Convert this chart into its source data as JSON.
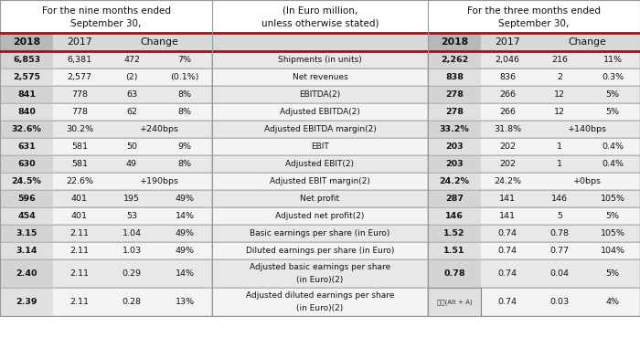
{
  "title_left1": "For the nine months ended",
  "title_left2": "September 30,",
  "title_center1": "(In Euro million,",
  "title_center2": "unless otherwise stated)",
  "title_right1": "For the three months ended",
  "title_right2": "September 30,",
  "rows": [
    {
      "label": "Shipments (in units)",
      "left": [
        "6,853",
        "6,381",
        "472",
        "7%"
      ],
      "right": [
        "2,262",
        "2,046",
        "216",
        "11%"
      ],
      "multiline": false
    },
    {
      "label": "Net revenues",
      "left": [
        "2,575",
        "2,577",
        "(2)",
        "(0.1%)"
      ],
      "right": [
        "838",
        "836",
        "2",
        "0.3%"
      ],
      "multiline": false
    },
    {
      "label": "EBITDA(2)",
      "left": [
        "841",
        "778",
        "63",
        "8%"
      ],
      "right": [
        "278",
        "266",
        "12",
        "5%"
      ],
      "multiline": false
    },
    {
      "label": "Adjusted EBITDA(2)",
      "left": [
        "840",
        "778",
        "62",
        "8%"
      ],
      "right": [
        "278",
        "266",
        "12",
        "5%"
      ],
      "multiline": false
    },
    {
      "label": "Adjusted EBITDA margin(2)",
      "left": [
        "32.6%",
        "30.2%",
        "+240bps",
        ""
      ],
      "right": [
        "33.2%",
        "31.8%",
        "+140bps",
        ""
      ],
      "multiline": false
    },
    {
      "label": "EBIT",
      "left": [
        "631",
        "581",
        "50",
        "9%"
      ],
      "right": [
        "203",
        "202",
        "1",
        "0.4%"
      ],
      "multiline": false
    },
    {
      "label": "Adjusted EBIT(2)",
      "left": [
        "630",
        "581",
        "49",
        "8%"
      ],
      "right": [
        "203",
        "202",
        "1",
        "0.4%"
      ],
      "multiline": false
    },
    {
      "label": "Adjusted EBIT margin(2)",
      "left": [
        "24.5%",
        "22.6%",
        "+190bps",
        ""
      ],
      "right": [
        "24.2%",
        "24.2%",
        "+0bps",
        ""
      ],
      "multiline": false
    },
    {
      "label": "Net profit",
      "left": [
        "596",
        "401",
        "195",
        "49%"
      ],
      "right": [
        "287",
        "141",
        "146",
        "105%"
      ],
      "multiline": false
    },
    {
      "label": "Adjusted net profit(2)",
      "left": [
        "454",
        "401",
        "53",
        "14%"
      ],
      "right": [
        "146",
        "141",
        "5",
        "5%"
      ],
      "multiline": false
    },
    {
      "label": "Basic earnings per share (in Euro)",
      "left": [
        "3.15",
        "2.11",
        "1.04",
        "49%"
      ],
      "right": [
        "1.52",
        "0.74",
        "0.78",
        "105%"
      ],
      "multiline": false
    },
    {
      "label": "Diluted earnings per share (in Euro)",
      "left": [
        "3.14",
        "2.11",
        "1.03",
        "49%"
      ],
      "right": [
        "1.51",
        "0.74",
        "0.77",
        "104%"
      ],
      "multiline": false
    },
    {
      "label": "Adjusted basic earnings per share\n(in Euro)(2)",
      "left": [
        "2.40",
        "2.11",
        "0.29",
        "14%"
      ],
      "right": [
        "0.78",
        "0.74",
        "0.04",
        "5%"
      ],
      "multiline": true
    },
    {
      "label": "Adjusted diluted earnings per share\n(in Euro)(2)",
      "left": [
        "2.39",
        "2.11",
        "0.28",
        "13%"
      ],
      "right": [
        "",
        "0.74",
        "0.03",
        "4%"
      ],
      "multiline": true,
      "screenshot_box": true
    }
  ],
  "col_bg_2018_left": "#c8c8c8",
  "col_bg_2018_right": "#c8c8c8",
  "row_alt1": "#e8e8e8",
  "row_alt2": "#f4f4f4",
  "header_bg": "#d8d8d8",
  "title_bg": "#ffffff",
  "red_color": "#c8000a",
  "border_color": "#999999",
  "text_dark": "#111111"
}
